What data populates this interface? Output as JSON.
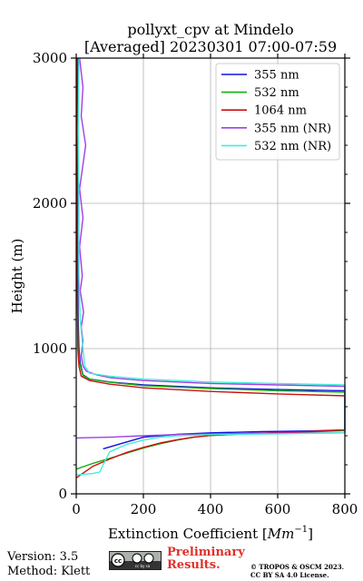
{
  "chart_data": {
    "type": "line",
    "title": "pollyxt_cpv at Mindelo",
    "subtitle": "[Averaged] 20230301 07:00-07:59",
    "xlabel": "Extinction Coefficient [",
    "xlabel_unit": "Mm",
    "xlabel_exp": "−1",
    "xlabel_end": "]",
    "ylabel": "Height (m)",
    "xlim": [
      0,
      800
    ],
    "ylim": [
      0,
      3000
    ],
    "x_ticks": [
      0,
      200,
      400,
      600,
      800
    ],
    "y_ticks": [
      0,
      1000,
      2000,
      3000
    ],
    "grid": true,
    "legend_position": "top-right",
    "series": [
      {
        "name": "355 nm",
        "color": "#1010e0",
        "points": [
          [
            80,
            310
          ],
          [
            200,
            390
          ],
          [
            300,
            410
          ],
          [
            400,
            420
          ],
          [
            550,
            428
          ],
          [
            700,
            433
          ],
          [
            800,
            440
          ],
          [
            800,
            710
          ],
          [
            600,
            718
          ],
          [
            400,
            730
          ],
          [
            200,
            750
          ],
          [
            100,
            770
          ],
          [
            40,
            790
          ],
          [
            20,
            820
          ],
          [
            12,
            900
          ],
          [
            8,
            1000
          ],
          [
            6,
            1200
          ],
          [
            5,
            1500
          ],
          [
            4,
            1800
          ],
          [
            5,
            2150
          ],
          [
            4,
            2500
          ],
          [
            6,
            2900
          ],
          [
            5,
            3000
          ]
        ]
      },
      {
        "name": "532 nm",
        "color": "#10b010",
        "points": [
          [
            0,
            170
          ],
          [
            50,
            210
          ],
          [
            100,
            245
          ],
          [
            150,
            280
          ],
          [
            200,
            315
          ],
          [
            250,
            345
          ],
          [
            300,
            370
          ],
          [
            350,
            390
          ],
          [
            400,
            402
          ],
          [
            500,
            412
          ],
          [
            600,
            420
          ],
          [
            700,
            427
          ],
          [
            800,
            435
          ],
          [
            800,
            700
          ],
          [
            600,
            710
          ],
          [
            400,
            725
          ],
          [
            200,
            745
          ],
          [
            100,
            768
          ],
          [
            40,
            790
          ],
          [
            20,
            815
          ],
          [
            10,
            900
          ],
          [
            6,
            1000
          ],
          [
            4,
            1300
          ],
          [
            3,
            1700
          ],
          [
            3,
            2200
          ],
          [
            2,
            2600
          ],
          [
            3,
            3000
          ]
        ]
      },
      {
        "name": "1064 nm",
        "color": "#cc1010",
        "points": [
          [
            0,
            110
          ],
          [
            50,
            190
          ],
          [
            100,
            240
          ],
          [
            150,
            285
          ],
          [
            200,
            320
          ],
          [
            250,
            350
          ],
          [
            300,
            372
          ],
          [
            350,
            390
          ],
          [
            400,
            402
          ],
          [
            500,
            414
          ],
          [
            600,
            422
          ],
          [
            700,
            430
          ],
          [
            800,
            440
          ],
          [
            800,
            675
          ],
          [
            600,
            688
          ],
          [
            400,
            705
          ],
          [
            200,
            730
          ],
          [
            100,
            755
          ],
          [
            40,
            780
          ],
          [
            15,
            810
          ],
          [
            8,
            880
          ],
          [
            5,
            1000
          ],
          [
            3,
            1500
          ],
          [
            2,
            2200
          ],
          [
            2,
            3000
          ]
        ]
      },
      {
        "name": "355 nm (NR)",
        "color": "#a040e0",
        "points": [
          [
            0,
            385
          ],
          [
            100,
            390
          ],
          [
            200,
            400
          ],
          [
            300,
            408
          ],
          [
            400,
            413
          ],
          [
            600,
            418
          ],
          [
            800,
            420
          ],
          [
            800,
            740
          ],
          [
            600,
            750
          ],
          [
            400,
            760
          ],
          [
            200,
            780
          ],
          [
            100,
            800
          ],
          [
            60,
            820
          ],
          [
            30,
            845
          ],
          [
            20,
            880
          ],
          [
            15,
            950
          ],
          [
            20,
            1050
          ],
          [
            15,
            1150
          ],
          [
            22,
            1250
          ],
          [
            12,
            1400
          ],
          [
            18,
            1500
          ],
          [
            10,
            1700
          ],
          [
            20,
            1900
          ],
          [
            10,
            2100
          ],
          [
            28,
            2400
          ],
          [
            15,
            2600
          ],
          [
            20,
            2800
          ],
          [
            10,
            3000
          ]
        ]
      },
      {
        "name": "532 nm (NR)",
        "color": "#40f0d8",
        "points": [
          [
            0,
            130
          ],
          [
            50,
            140
          ],
          [
            70,
            150
          ],
          [
            80,
            200
          ],
          [
            100,
            290
          ],
          [
            150,
            340
          ],
          [
            200,
            370
          ],
          [
            250,
            390
          ],
          [
            300,
            400
          ],
          [
            400,
            408
          ],
          [
            600,
            413
          ],
          [
            800,
            420
          ],
          [
            800,
            750
          ],
          [
            600,
            760
          ],
          [
            400,
            770
          ],
          [
            200,
            790
          ],
          [
            100,
            810
          ],
          [
            40,
            830
          ],
          [
            25,
            880
          ],
          [
            20,
            1000
          ],
          [
            12,
            1200
          ],
          [
            8,
            1500
          ],
          [
            8,
            2000
          ],
          [
            6,
            2500
          ],
          [
            8,
            3000
          ]
        ]
      }
    ]
  },
  "footer": {
    "version": "Version: 3.5",
    "method": "Method: Klett",
    "license_badge": "cc by sa",
    "prelim_line1": "Preliminary",
    "prelim_line2": "Results.",
    "copyright_line1": "© TROPOS & OSCM 2023.",
    "copyright_line2": "CC BY SA 4.0 License."
  }
}
